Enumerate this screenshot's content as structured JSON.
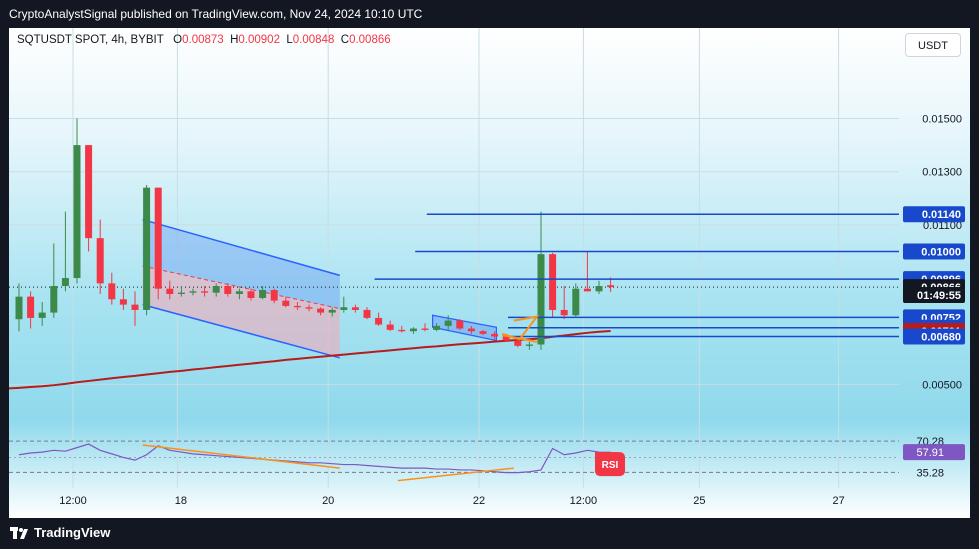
{
  "header": {
    "published": "CryptoAnalystSignal published on TradingView.com, Nov 24, 2024 10:10 UTC"
  },
  "footer": {
    "brand": "TradingView"
  },
  "legend": {
    "symbol": "SQTUSDT SPOT, 4h, BYBIT",
    "open_label": "O",
    "open": "0.00873",
    "high_label": "H",
    "high": "0.00902",
    "low_label": "L",
    "low": "0.00848",
    "close_label": "C",
    "close": "0.00866"
  },
  "currency_button": "USDT",
  "colors": {
    "up": "#3c8a4a",
    "down": "#f23645",
    "level_line": "#1848cc",
    "ma": "#b71c1c",
    "rsi": "#7e57c2",
    "orange": "#f7931a",
    "channel": "#2962ff"
  },
  "chart_data": {
    "type": "candlestick",
    "symbol": "SQTUSDT",
    "timeframe": "4h",
    "exchange": "BYBIT",
    "y_axis": {
      "scale": "linear",
      "range": [
        0.0043,
        0.0169
      ],
      "ticks": [
        "0.01500",
        "0.01300",
        "0.01100",
        "0.00500"
      ]
    },
    "x_axis_ticks": [
      "12:00",
      "18",
      "20",
      "22",
      "12:00",
      "25",
      "27"
    ],
    "candles": [
      {
        "o": 0.00745,
        "h": 0.0088,
        "l": 0.007,
        "c": 0.0083
      },
      {
        "o": 0.0083,
        "h": 0.0085,
        "l": 0.0071,
        "c": 0.0075
      },
      {
        "o": 0.0075,
        "h": 0.0081,
        "l": 0.0072,
        "c": 0.0077
      },
      {
        "o": 0.0077,
        "h": 0.0103,
        "l": 0.0075,
        "c": 0.0087
      },
      {
        "o": 0.0087,
        "h": 0.0115,
        "l": 0.0085,
        "c": 0.009
      },
      {
        "o": 0.009,
        "h": 0.015,
        "l": 0.0088,
        "c": 0.014
      },
      {
        "o": 0.014,
        "h": 0.014,
        "l": 0.01,
        "c": 0.0105
      },
      {
        "o": 0.0105,
        "h": 0.0112,
        "l": 0.0084,
        "c": 0.0088
      },
      {
        "o": 0.0088,
        "h": 0.0092,
        "l": 0.008,
        "c": 0.0082
      },
      {
        "o": 0.0082,
        "h": 0.0086,
        "l": 0.0078,
        "c": 0.008
      },
      {
        "o": 0.008,
        "h": 0.0085,
        "l": 0.0072,
        "c": 0.0078
      },
      {
        "o": 0.0078,
        "h": 0.0125,
        "l": 0.0076,
        "c": 0.0124
      },
      {
        "o": 0.0124,
        "h": 0.0124,
        "l": 0.0082,
        "c": 0.0086
      },
      {
        "o": 0.0086,
        "h": 0.0089,
        "l": 0.0082,
        "c": 0.0084
      },
      {
        "o": 0.0084,
        "h": 0.0087,
        "l": 0.0083,
        "c": 0.00845
      },
      {
        "o": 0.00845,
        "h": 0.0086,
        "l": 0.00835,
        "c": 0.0085
      },
      {
        "o": 0.0085,
        "h": 0.0087,
        "l": 0.0083,
        "c": 0.00845
      },
      {
        "o": 0.00845,
        "h": 0.0088,
        "l": 0.0083,
        "c": 0.0087
      },
      {
        "o": 0.0087,
        "h": 0.0088,
        "l": 0.0083,
        "c": 0.0084
      },
      {
        "o": 0.0084,
        "h": 0.0086,
        "l": 0.0082,
        "c": 0.0085
      },
      {
        "o": 0.0085,
        "h": 0.0086,
        "l": 0.00815,
        "c": 0.00825
      },
      {
        "o": 0.00825,
        "h": 0.0087,
        "l": 0.0082,
        "c": 0.00855
      },
      {
        "o": 0.00855,
        "h": 0.0086,
        "l": 0.00805,
        "c": 0.00815
      },
      {
        "o": 0.00815,
        "h": 0.0083,
        "l": 0.0079,
        "c": 0.00795
      },
      {
        "o": 0.00795,
        "h": 0.0081,
        "l": 0.0078,
        "c": 0.0079
      },
      {
        "o": 0.0079,
        "h": 0.008,
        "l": 0.00775,
        "c": 0.00785
      },
      {
        "o": 0.00785,
        "h": 0.0079,
        "l": 0.0076,
        "c": 0.0077
      },
      {
        "o": 0.0077,
        "h": 0.0079,
        "l": 0.00755,
        "c": 0.0078
      },
      {
        "o": 0.0078,
        "h": 0.0083,
        "l": 0.0077,
        "c": 0.0079
      },
      {
        "o": 0.0079,
        "h": 0.008,
        "l": 0.0077,
        "c": 0.0078
      },
      {
        "o": 0.0078,
        "h": 0.0079,
        "l": 0.00745,
        "c": 0.0075
      },
      {
        "o": 0.0075,
        "h": 0.0077,
        "l": 0.0072,
        "c": 0.00725
      },
      {
        "o": 0.00725,
        "h": 0.0074,
        "l": 0.007,
        "c": 0.00705
      },
      {
        "o": 0.00705,
        "h": 0.0072,
        "l": 0.00695,
        "c": 0.007
      },
      {
        "o": 0.007,
        "h": 0.00715,
        "l": 0.0069,
        "c": 0.0071
      },
      {
        "o": 0.0071,
        "h": 0.0073,
        "l": 0.007,
        "c": 0.00705
      },
      {
        "o": 0.00705,
        "h": 0.0073,
        "l": 0.007,
        "c": 0.0072
      },
      {
        "o": 0.0072,
        "h": 0.0076,
        "l": 0.007,
        "c": 0.0074
      },
      {
        "o": 0.0074,
        "h": 0.00745,
        "l": 0.00705,
        "c": 0.0071
      },
      {
        "o": 0.0071,
        "h": 0.0072,
        "l": 0.0069,
        "c": 0.007
      },
      {
        "o": 0.007,
        "h": 0.00705,
        "l": 0.00685,
        "c": 0.0069
      },
      {
        "o": 0.0069,
        "h": 0.007,
        "l": 0.0067,
        "c": 0.0068
      },
      {
        "o": 0.0068,
        "h": 0.0069,
        "l": 0.0066,
        "c": 0.00665
      },
      {
        "o": 0.00665,
        "h": 0.0068,
        "l": 0.0064,
        "c": 0.00645
      },
      {
        "o": 0.00645,
        "h": 0.0066,
        "l": 0.0063,
        "c": 0.0065
      },
      {
        "o": 0.0065,
        "h": 0.0115,
        "l": 0.0063,
        "c": 0.0099
      },
      {
        "o": 0.0099,
        "h": 0.00995,
        "l": 0.0075,
        "c": 0.0078
      },
      {
        "o": 0.0078,
        "h": 0.0087,
        "l": 0.00745,
        "c": 0.0076
      },
      {
        "o": 0.0076,
        "h": 0.0088,
        "l": 0.00755,
        "c": 0.0086
      },
      {
        "o": 0.0086,
        "h": 0.01,
        "l": 0.0085,
        "c": 0.0085
      },
      {
        "o": 0.0085,
        "h": 0.0089,
        "l": 0.0084,
        "c": 0.0087
      },
      {
        "o": 0.00873,
        "h": 0.00902,
        "l": 0.00848,
        "c": 0.00866
      }
    ],
    "horizontal_levels": [
      0.0114,
      0.01,
      0.00896,
      0.00752,
      0.00713,
      0.0068
    ],
    "price_labels": [
      {
        "text": "0.01140",
        "value": 0.0114,
        "kind": "level"
      },
      {
        "text": "0.01000",
        "value": 0.01,
        "kind": "level"
      },
      {
        "text": "0.00896",
        "value": 0.00896,
        "kind": "level"
      },
      {
        "text": "0.00866",
        "value": 0.00866,
        "kind": "last"
      },
      {
        "text": "01:49:55",
        "value": 0.00836,
        "kind": "countdown"
      },
      {
        "text": "0.00752",
        "value": 0.00752,
        "kind": "level"
      },
      {
        "text": "0.00713",
        "value": 0.00713,
        "kind": "level"
      },
      {
        "text": "0.00701",
        "value": 0.00701,
        "kind": "ma"
      },
      {
        "text": "0.00680",
        "value": 0.0068,
        "kind": "level"
      }
    ],
    "moving_average": [
      0.00487,
      0.0049,
      0.00493,
      0.00497,
      0.00502,
      0.00508,
      0.00513,
      0.00518,
      0.00523,
      0.00528,
      0.00532,
      0.00537,
      0.00542,
      0.00547,
      0.00551,
      0.00556,
      0.0056,
      0.00565,
      0.00569,
      0.00574,
      0.00578,
      0.00583,
      0.00587,
      0.00592,
      0.00596,
      0.006,
      0.00604,
      0.00608,
      0.00612,
      0.00616,
      0.0062,
      0.00624,
      0.00628,
      0.00632,
      0.00636,
      0.0064,
      0.00643,
      0.00647,
      0.00651,
      0.00654,
      0.00657,
      0.00661,
      0.00664,
      0.00667,
      0.0067,
      0.00673,
      0.00679,
      0.00684,
      0.00689,
      0.00694,
      0.00698,
      0.00701
    ],
    "rsi": {
      "name": "RSI",
      "value_label": "57.91",
      "bands": [
        "70.28",
        "35.28"
      ],
      "values": [
        55,
        57,
        58,
        60,
        59,
        63,
        67,
        60,
        56,
        52,
        49,
        55,
        65,
        60,
        58,
        56,
        55,
        54,
        53,
        52,
        51,
        50,
        49,
        48,
        47,
        46,
        46,
        45,
        44,
        44,
        43,
        42,
        41,
        40,
        40,
        40,
        39,
        39,
        38,
        38,
        37,
        36,
        35,
        35,
        36,
        38,
        62,
        55,
        57,
        60,
        58,
        57.91
      ]
    }
  }
}
